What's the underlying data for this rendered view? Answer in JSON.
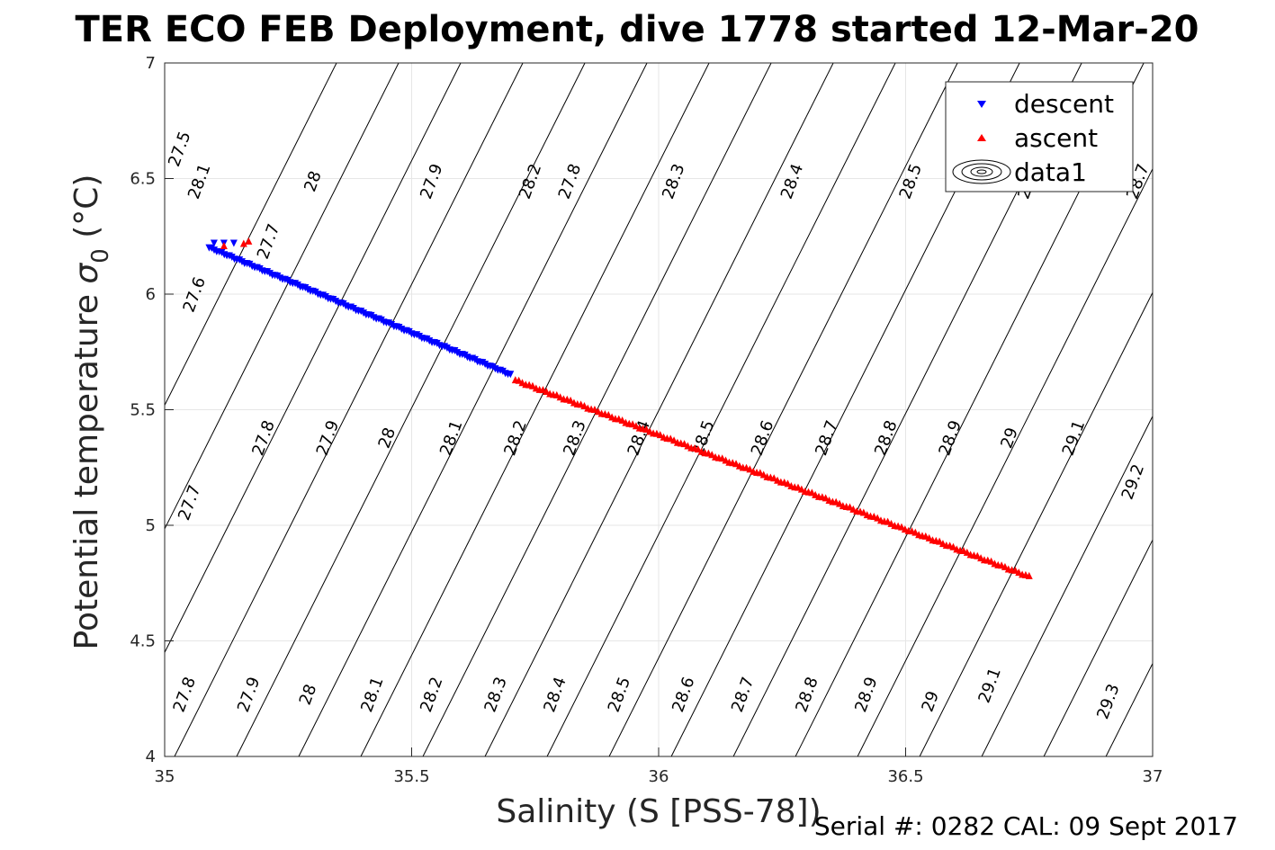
{
  "chart_data": {
    "type": "scatter",
    "title": "TER ECO FEB Deployment, dive 1778 started 12-Mar-20",
    "xlabel": "Salinity (S [PSS-78])",
    "ylabel_main": "Potential temperature ",
    "ylabel_sigma": "σ",
    "ylabel_sub": "0",
    "ylabel_unit": " (°C)",
    "xlim": [
      35,
      37
    ],
    "ylim": [
      4,
      7
    ],
    "grid": true,
    "x_ticks": [
      {
        "value": 35,
        "label": "35"
      },
      {
        "value": 35.5,
        "label": "35.5"
      },
      {
        "value": 36,
        "label": "36"
      },
      {
        "value": 36.5,
        "label": "36.5"
      },
      {
        "value": 37,
        "label": "37"
      }
    ],
    "y_ticks": [
      {
        "value": 4,
        "label": "4"
      },
      {
        "value": 4.5,
        "label": "4.5"
      },
      {
        "value": 5,
        "label": "5"
      },
      {
        "value": 5.5,
        "label": "5.5"
      },
      {
        "value": 6,
        "label": "6"
      },
      {
        "value": 6.5,
        "label": "6.5"
      },
      {
        "value": 7,
        "label": "7"
      }
    ],
    "legend_position": "top-right",
    "series": [
      {
        "name": "descent",
        "marker": "triangle-down",
        "color": "#0000ff",
        "s_start": 35.09,
        "t_start": 6.2,
        "s_end": 35.7,
        "t_end": 5.65,
        "points": 120,
        "extra": [
          [
            35.1,
            6.22
          ],
          [
            35.12,
            6.22
          ],
          [
            35.14,
            6.22
          ]
        ]
      },
      {
        "name": "ascent",
        "marker": "triangle-up",
        "color": "#ff0000",
        "s_start": 35.71,
        "t_start": 5.63,
        "s_end": 36.75,
        "t_end": 4.78,
        "points": 150,
        "extra": [
          [
            35.16,
            6.22
          ],
          [
            35.17,
            6.23
          ],
          [
            35.12,
            6.21
          ]
        ]
      },
      {
        "name": "data1",
        "marker": "contour"
      }
    ],
    "contours": {
      "levels": [
        "27.5",
        "27.6",
        "27.7",
        "27.8",
        "27.9",
        "28",
        "28.1",
        "28.2",
        "28.3",
        "28.4",
        "28.5",
        "28.6",
        "28.7",
        "28.8",
        "28.9",
        "29",
        "29.1",
        "29.2",
        "29.3"
      ],
      "labels": [
        {
          "text": "27.5",
          "s": 35.04,
          "t": 6.62
        },
        {
          "text": "27.8",
          "s": 35.83,
          "t": 6.48
        },
        {
          "text": "27.9",
          "s": 35.55,
          "t": 6.48
        },
        {
          "text": "28",
          "s": 35.31,
          "t": 6.48
        },
        {
          "text": "28.1",
          "s": 35.08,
          "t": 6.48
        },
        {
          "text": "28.2",
          "s": 35.75,
          "t": 6.48
        },
        {
          "text": "28.3",
          "s": 36.04,
          "t": 6.48
        },
        {
          "text": "28.4",
          "s": 36.28,
          "t": 6.48
        },
        {
          "text": "28.5",
          "s": 36.52,
          "t": 6.48
        },
        {
          "text": "28.6",
          "s": 36.76,
          "t": 6.48
        },
        {
          "text": "28.7",
          "s": 36.98,
          "t": 6.48
        },
        {
          "text": "27.7",
          "s": 35.22,
          "t": 6.22
        },
        {
          "text": "27.6",
          "s": 35.07,
          "t": 5.99
        },
        {
          "text": "27.8",
          "s": 35.21,
          "t": 5.37
        },
        {
          "text": "27.9",
          "s": 35.34,
          "t": 5.37
        },
        {
          "text": "28",
          "s": 35.46,
          "t": 5.37
        },
        {
          "text": "28.1",
          "s": 35.59,
          "t": 5.37
        },
        {
          "text": "28.2",
          "s": 35.72,
          "t": 5.37
        },
        {
          "text": "28.3",
          "s": 35.84,
          "t": 5.37
        },
        {
          "text": "28.4",
          "s": 35.97,
          "t": 5.37
        },
        {
          "text": "28.5",
          "s": 36.1,
          "t": 5.37
        },
        {
          "text": "28.6",
          "s": 36.22,
          "t": 5.37
        },
        {
          "text": "28.7",
          "s": 36.35,
          "t": 5.37
        },
        {
          "text": "28.8",
          "s": 36.47,
          "t": 5.37
        },
        {
          "text": "28.9",
          "s": 36.6,
          "t": 5.37
        },
        {
          "text": "29",
          "s": 36.72,
          "t": 5.37
        },
        {
          "text": "29.1",
          "s": 36.85,
          "t": 5.37
        },
        {
          "text": "29.2",
          "s": 36.97,
          "t": 5.18
        },
        {
          "text": "27.7",
          "s": 35.06,
          "t": 5.09
        },
        {
          "text": "27.8",
          "s": 35.05,
          "t": 4.26
        },
        {
          "text": "27.9",
          "s": 35.18,
          "t": 4.26
        },
        {
          "text": "28",
          "s": 35.3,
          "t": 4.26
        },
        {
          "text": "28.1",
          "s": 35.43,
          "t": 4.26
        },
        {
          "text": "28.2",
          "s": 35.55,
          "t": 4.26
        },
        {
          "text": "28.3",
          "s": 35.68,
          "t": 4.26
        },
        {
          "text": "28.4",
          "s": 35.8,
          "t": 4.26
        },
        {
          "text": "28.5",
          "s": 35.93,
          "t": 4.26
        },
        {
          "text": "28.6",
          "s": 36.06,
          "t": 4.26
        },
        {
          "text": "28.7",
          "s": 36.18,
          "t": 4.26
        },
        {
          "text": "28.8",
          "s": 36.31,
          "t": 4.26
        },
        {
          "text": "28.9",
          "s": 36.43,
          "t": 4.26
        },
        {
          "text": "29",
          "s": 36.56,
          "t": 4.23
        },
        {
          "text": "29.1",
          "s": 36.68,
          "t": 4.3
        },
        {
          "text": "29.3",
          "s": 36.92,
          "t": 4.23
        }
      ]
    }
  },
  "footer": {
    "serial_text": "Serial #: 0282  CAL: 09 Sept 2017"
  }
}
